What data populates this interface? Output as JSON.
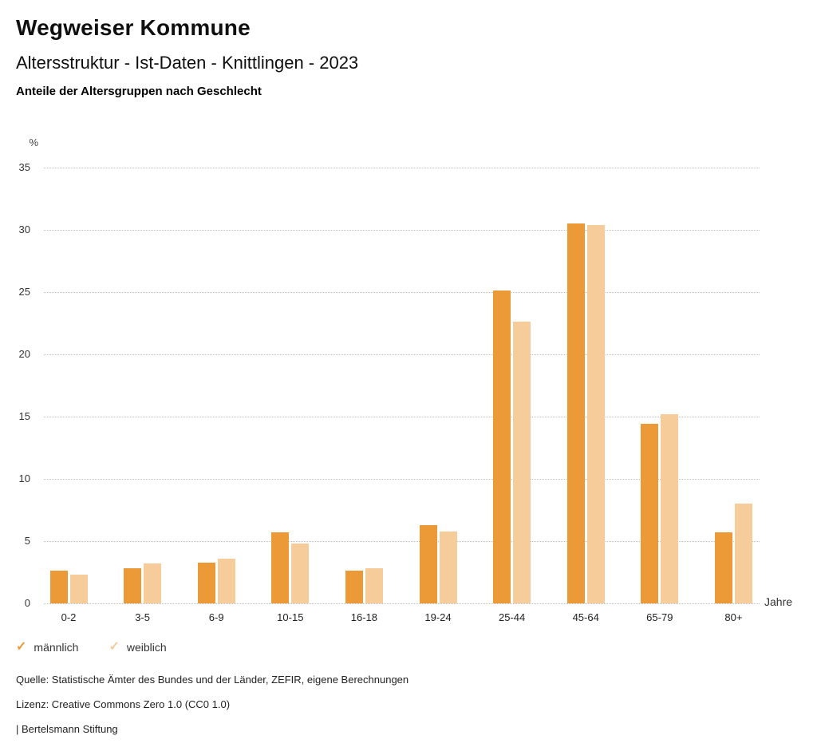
{
  "header": {
    "title": "Wegweiser Kommune",
    "subtitle": "Altersstruktur - Ist-Daten - Knittlingen - 2023",
    "description": "Anteile der Altersgruppen nach Geschlecht"
  },
  "chart_data": {
    "type": "bar",
    "title": "Anteile der Altersgruppen nach Geschlecht",
    "ylabel": "%",
    "xlabel": "Jahre",
    "ylim": [
      0,
      35
    ],
    "y_tick_step": 5,
    "grid": "dotted horizontal",
    "legend_position": "bottom-left",
    "categories": [
      "0-2",
      "3-5",
      "6-9",
      "10-15",
      "16-18",
      "19-24",
      "25-44",
      "45-64",
      "65-79",
      "80+"
    ],
    "series": [
      {
        "name": "männlich",
        "color": "#EC9937",
        "values": [
          2.6,
          2.8,
          3.3,
          5.7,
          2.6,
          6.3,
          25.1,
          30.5,
          14.4,
          5.7
        ]
      },
      {
        "name": "weiblich",
        "color": "#F5CC9A",
        "values": [
          2.3,
          3.2,
          3.6,
          4.8,
          2.8,
          5.8,
          22.6,
          30.4,
          15.2,
          8.0
        ]
      }
    ]
  },
  "legend": {
    "check_icon": "✓"
  },
  "footer": {
    "source": "Quelle: Statistische Ämter des Bundes und der Länder, ZEFIR, eigene Berechnungen",
    "license": "Lizenz: Creative Commons Zero 1.0 (CC0 1.0)",
    "attribution": "| Bertelsmann Stiftung"
  }
}
